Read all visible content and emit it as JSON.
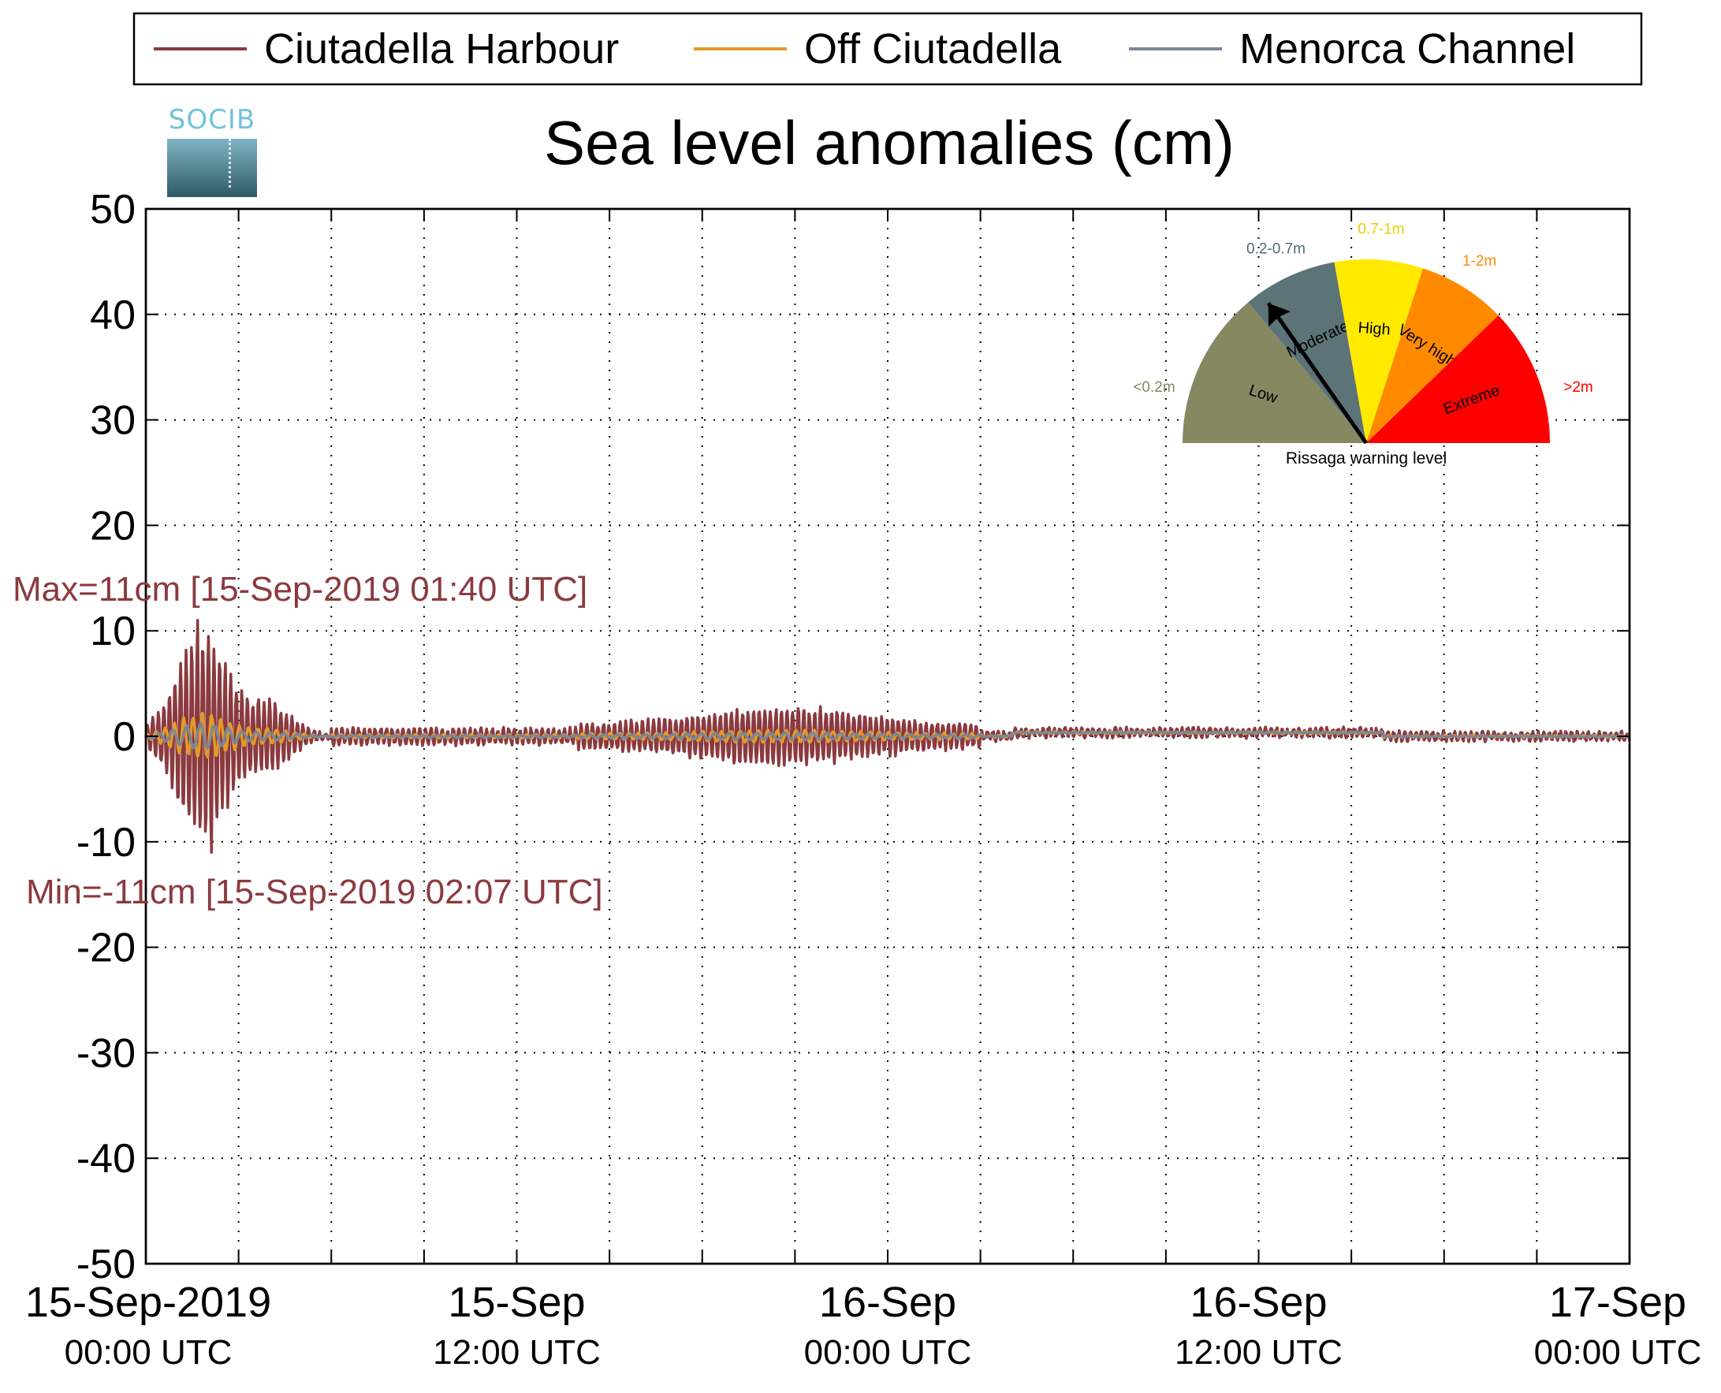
{
  "chart_data": {
    "type": "line",
    "title": "Sea level anomalies (cm)",
    "ylim": [
      -50,
      50
    ],
    "yticks": [
      50,
      40,
      30,
      20,
      10,
      0,
      -10,
      -20,
      -30,
      -40,
      -50
    ],
    "xlim_hours": [
      0,
      48
    ],
    "xticks": [
      {
        "line1": "15-Sep-2019",
        "line2": "00:00 UTC"
      },
      {
        "line1": "15-Sep",
        "line2": "12:00 UTC"
      },
      {
        "line1": "16-Sep",
        "line2": "00:00 UTC"
      },
      {
        "line1": "16-Sep",
        "line2": "12:00 UTC"
      },
      {
        "line1": "17-Sep",
        "line2": "00:00 UTC"
      }
    ],
    "grid": true,
    "legend_position": "top",
    "series": [
      {
        "name": "Ciutadella Harbour",
        "color": "#8b3a3f"
      },
      {
        "name": "Off Ciutadella",
        "color": "#e39a2a"
      },
      {
        "name": "Menorca Channel",
        "color": "#7a8799"
      }
    ],
    "annotations": {
      "max": "Max=11cm [15-Sep-2019 01:40 UTC]",
      "min": "Min=-11cm [15-Sep-2019 02:07 UTC]"
    },
    "extremes": {
      "max_cm": 11,
      "max_hour": 1.67,
      "min_cm": -11,
      "min_hour": 2.12
    }
  },
  "logo": {
    "text": "SOCIB"
  },
  "gauge": {
    "caption": "Rissaga warning level",
    "sectors": [
      {
        "label": "Low",
        "range": "<0.2m",
        "color": "#868862",
        "text_color": "#808a5e"
      },
      {
        "label": "Moderate",
        "range": "0.2-0.7m",
        "color": "#5c7377",
        "text_color": "#4f6a70"
      },
      {
        "label": "High",
        "range": "0.7-1m",
        "color": "#ffea00",
        "text_color": "#e8cf00"
      },
      {
        "label": "Very high",
        "range": "1-2m",
        "color": "#ff8a00",
        "text_color": "#ff8a00"
      },
      {
        "label": "Extreme",
        "range": ">2m",
        "color": "#ff0000",
        "text_color": "#ff0000"
      }
    ],
    "level": "Moderate"
  }
}
